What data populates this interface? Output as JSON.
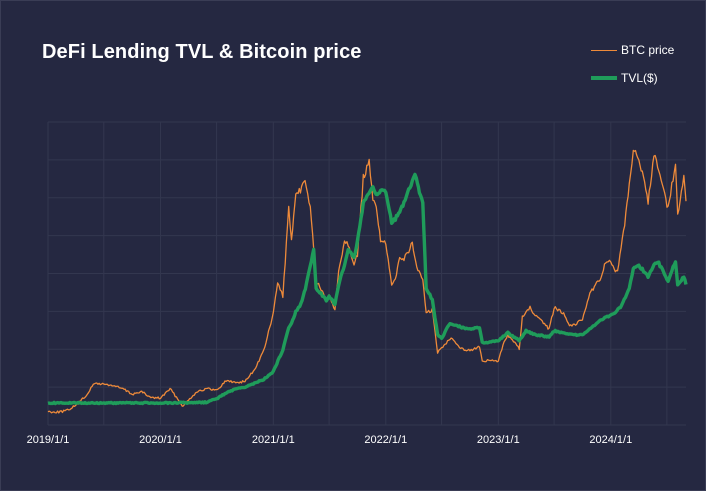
{
  "chart_data": {
    "type": "line",
    "title": "DeFi Lending TVL & Bitcoin price",
    "x_tick_labels": [
      "2019/1/1",
      "2020/1/1",
      "2021/1/1",
      "2022/1/1",
      "2023/1/1",
      "2024/1/1"
    ],
    "x_range": [
      "2019/1/1",
      "2024/9/1"
    ],
    "grid": true,
    "legend_position": "top-right",
    "y_axis_labels_visible": false,
    "series": [
      {
        "name": "BTC price",
        "color": "#ee8a3a",
        "points": [
          [
            "2019/1/1",
            3700
          ],
          [
            "2019/2/1",
            3600
          ],
          [
            "2019/3/1",
            3900
          ],
          [
            "2019/4/1",
            5300
          ],
          [
            "2019/5/1",
            7500
          ],
          [
            "2019/6/1",
            11000
          ],
          [
            "2019/7/1",
            10800
          ],
          [
            "2019/8/1",
            10400
          ],
          [
            "2019/9/1",
            9600
          ],
          [
            "2019/10/1",
            8200
          ],
          [
            "2019/11/1",
            8800
          ],
          [
            "2019/12/1",
            7300
          ],
          [
            "2020/1/1",
            7200
          ],
          [
            "2020/2/1",
            9600
          ],
          [
            "2020/3/1",
            6500
          ],
          [
            "2020/3/15",
            5000
          ],
          [
            "2020/4/1",
            6800
          ],
          [
            "2020/5/1",
            9000
          ],
          [
            "2020/6/1",
            9600
          ],
          [
            "2020/7/1",
            9200
          ],
          [
            "2020/8/1",
            11700
          ],
          [
            "2020/9/1",
            11200
          ],
          [
            "2020/10/1",
            11500
          ],
          [
            "2020/11/1",
            14500
          ],
          [
            "2020/12/1",
            19400
          ],
          [
            "2021/1/1",
            29000
          ],
          [
            "2021/1/15",
            37000
          ],
          [
            "2021/2/1",
            33500
          ],
          [
            "2021/2/20",
            56000
          ],
          [
            "2021/3/1",
            48000
          ],
          [
            "2021/3/15",
            59000
          ],
          [
            "2021/4/14",
            63000
          ],
          [
            "2021/5/1",
            57000
          ],
          [
            "2021/5/20",
            37000
          ],
          [
            "2021/6/1",
            36000
          ],
          [
            "2021/6/22",
            32000
          ],
          [
            "2021/7/1",
            34000
          ],
          [
            "2021/7/20",
            30000
          ],
          [
            "2021/8/1",
            40000
          ],
          [
            "2021/8/20",
            48000
          ],
          [
            "2021/9/1",
            47000
          ],
          [
            "2021/9/20",
            42000
          ],
          [
            "2021/10/1",
            44000
          ],
          [
            "2021/10/20",
            64000
          ],
          [
            "2021/11/8",
            68000
          ],
          [
            "2021/11/20",
            58000
          ],
          [
            "2021/12/1",
            57000
          ],
          [
            "2021/12/15",
            48000
          ],
          [
            "2022/1/1",
            47000
          ],
          [
            "2022/1/20",
            36000
          ],
          [
            "2022/2/1",
            38000
          ],
          [
            "2022/2/15",
            44000
          ],
          [
            "2022/3/1",
            43000
          ],
          [
            "2022/3/28",
            47000
          ],
          [
            "2022/4/15",
            40000
          ],
          [
            "2022/5/1",
            38000
          ],
          [
            "2022/5/12",
            29000
          ],
          [
            "2022/6/1",
            30000
          ],
          [
            "2022/6/18",
            19000
          ],
          [
            "2022/7/1",
            20000
          ],
          [
            "2022/8/1",
            23000
          ],
          [
            "2022/9/1",
            20000
          ],
          [
            "2022/10/1",
            19500
          ],
          [
            "2022/11/1",
            20500
          ],
          [
            "2022/11/10",
            16500
          ],
          [
            "2022/12/1",
            17000
          ],
          [
            "2023/1/1",
            16600
          ],
          [
            "2023/1/20",
            22000
          ],
          [
            "2023/2/1",
            23500
          ],
          [
            "2023/3/10",
            20000
          ],
          [
            "2023/3/20",
            28000
          ],
          [
            "2023/4/14",
            30500
          ],
          [
            "2023/5/1",
            28500
          ],
          [
            "2023/6/15",
            25000
          ],
          [
            "2023/7/1",
            30500
          ],
          [
            "2023/8/1",
            29200
          ],
          [
            "2023/8/20",
            26000
          ],
          [
            "2023/9/1",
            26000
          ],
          [
            "2023/10/1",
            27500
          ],
          [
            "2023/10/25",
            34500
          ],
          [
            "2023/11/1",
            35000
          ],
          [
            "2023/12/1",
            38500
          ],
          [
            "2023/12/15",
            42500
          ],
          [
            "2024/1/1",
            42000
          ],
          [
            "2024/1/23",
            39500
          ],
          [
            "2024/2/15",
            52000
          ],
          [
            "2024/3/1",
            62000
          ],
          [
            "2024/3/14",
            72000
          ],
          [
            "2024/4/1",
            69000
          ],
          [
            "2024/5/1",
            58000
          ],
          [
            "2024/5/20",
            70000
          ],
          [
            "2024/6/1",
            67500
          ],
          [
            "2024/7/5",
            56000
          ],
          [
            "2024/7/29",
            68000
          ],
          [
            "2024/8/5",
            54000
          ],
          [
            "2024/8/25",
            64000
          ],
          [
            "2024/9/1",
            58000
          ]
        ]
      },
      {
        "name": "TVL($)",
        "color": "#1f9c5a",
        "points": [
          [
            "2019/1/1",
            0.4
          ],
          [
            "2019/3/1",
            0.4
          ],
          [
            "2019/6/1",
            0.41
          ],
          [
            "2019/9/1",
            0.41
          ],
          [
            "2019/12/1",
            0.42
          ],
          [
            "2020/1/1",
            0.42
          ],
          [
            "2020/3/1",
            0.45
          ],
          [
            "2020/5/1",
            0.5
          ],
          [
            "2020/6/1",
            0.6
          ],
          [
            "2020/7/1",
            1.5
          ],
          [
            "2020/8/1",
            3.0
          ],
          [
            "2020/9/1",
            4.0
          ],
          [
            "2020/10/1",
            4.5
          ],
          [
            "2020/11/1",
            5.5
          ],
          [
            "2020/12/1",
            6.5
          ],
          [
            "2021/1/1",
            8.5
          ],
          [
            "2021/1/20",
            12.0
          ],
          [
            "2021/2/1",
            14.0
          ],
          [
            "2021/2/20",
            20.0
          ],
          [
            "2021/3/1",
            21.0
          ],
          [
            "2021/3/15",
            24.0
          ],
          [
            "2021/4/1",
            26.0
          ],
          [
            "2021/4/15",
            30.0
          ],
          [
            "2021/5/1",
            36.0
          ],
          [
            "2021/5/12",
            40.0
          ],
          [
            "2021/5/20",
            30.0
          ],
          [
            "2021/6/1",
            29.0
          ],
          [
            "2021/6/22",
            27.0
          ],
          [
            "2021/7/1",
            28.0
          ],
          [
            "2021/7/20",
            26.0
          ],
          [
            "2021/8/1",
            31.0
          ],
          [
            "2021/8/20",
            36.0
          ],
          [
            "2021/9/1",
            40.0
          ],
          [
            "2021/9/20",
            38.0
          ],
          [
            "2021/10/1",
            42.0
          ],
          [
            "2021/10/20",
            52.0
          ],
          [
            "2021/11/8",
            55.0
          ],
          [
            "2021/11/20",
            56.0
          ],
          [
            "2021/12/1",
            54.0
          ],
          [
            "2021/12/15",
            55.0
          ],
          [
            "2022/1/1",
            55.0
          ],
          [
            "2022/1/20",
            47.0
          ],
          [
            "2022/2/1",
            48.0
          ],
          [
            "2022/2/15",
            50.0
          ],
          [
            "2022/3/1",
            52.0
          ],
          [
            "2022/3/20",
            56.0
          ],
          [
            "2022/4/1",
            59.0
          ],
          [
            "2022/4/10",
            59.0
          ],
          [
            "2022/4/20",
            55.0
          ],
          [
            "2022/5/1",
            52.0
          ],
          [
            "2022/5/12",
            30.0
          ],
          [
            "2022/6/1",
            27.0
          ],
          [
            "2022/6/18",
            18.0
          ],
          [
            "2022/7/1",
            17.0
          ],
          [
            "2022/7/20",
            20.0
          ],
          [
            "2022/8/1",
            21.0
          ],
          [
            "2022/9/1",
            20.0
          ],
          [
            "2022/10/1",
            19.5
          ],
          [
            "2022/11/1",
            20.0
          ],
          [
            "2022/11/10",
            16.0
          ],
          [
            "2022/12/1",
            16.0
          ],
          [
            "2023/1/1",
            16.5
          ],
          [
            "2023/2/1",
            18.5
          ],
          [
            "2023/3/10",
            16.5
          ],
          [
            "2023/4/1",
            19.0
          ],
          [
            "2023/5/1",
            18.0
          ],
          [
            "2023/6/15",
            17.5
          ],
          [
            "2023/7/1",
            19.0
          ],
          [
            "2023/8/1",
            18.5
          ],
          [
            "2023/9/1",
            18.0
          ],
          [
            "2023/10/1",
            18.0
          ],
          [
            "2023/11/1",
            20.0
          ],
          [
            "2023/12/1",
            22.0
          ],
          [
            "2024/1/1",
            23.0
          ],
          [
            "2024/2/1",
            25.0
          ],
          [
            "2024/3/1",
            30.0
          ],
          [
            "2024/3/14",
            35.0
          ],
          [
            "2024/4/1",
            36.0
          ],
          [
            "2024/5/1",
            33.0
          ],
          [
            "2024/5/20",
            36.0
          ],
          [
            "2024/6/1",
            37.0
          ],
          [
            "2024/7/5",
            32.0
          ],
          [
            "2024/7/29",
            37.0
          ],
          [
            "2024/8/5",
            31.0
          ],
          [
            "2024/8/25",
            33.0
          ],
          [
            "2024/9/1",
            31.0
          ]
        ]
      }
    ]
  }
}
